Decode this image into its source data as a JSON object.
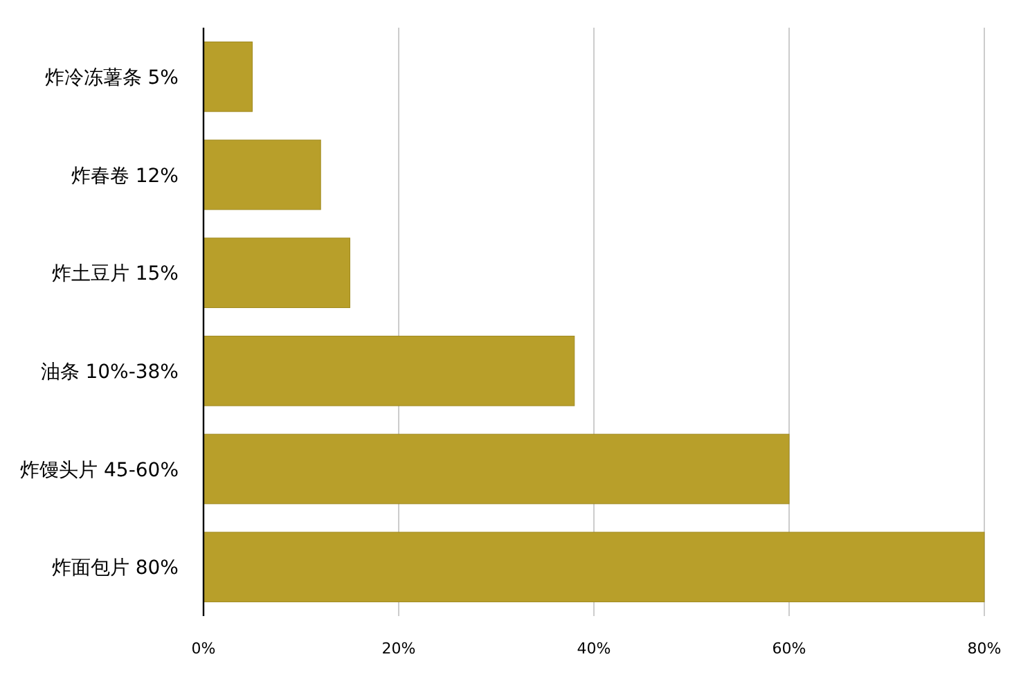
{
  "chart_data": {
    "type": "bar",
    "orientation": "horizontal",
    "categories": [
      "炸冷冻薯条 5%",
      "炸春卷 12%",
      "炸土豆片 15%",
      "油条 10%-38%",
      "炸馒头片 45-60%",
      "炸面包片 80%"
    ],
    "values": [
      5,
      12,
      15,
      38,
      60,
      80
    ],
    "color": "#b89f2a",
    "xlim": [
      0,
      80
    ],
    "xticks": [
      {
        "value": 0,
        "label": "0%"
      },
      {
        "value": 20,
        "label": "20%"
      },
      {
        "value": 40,
        "label": "40%"
      },
      {
        "value": 60,
        "label": "60%"
      },
      {
        "value": 80,
        "label": "80%"
      }
    ],
    "grid": "x"
  }
}
